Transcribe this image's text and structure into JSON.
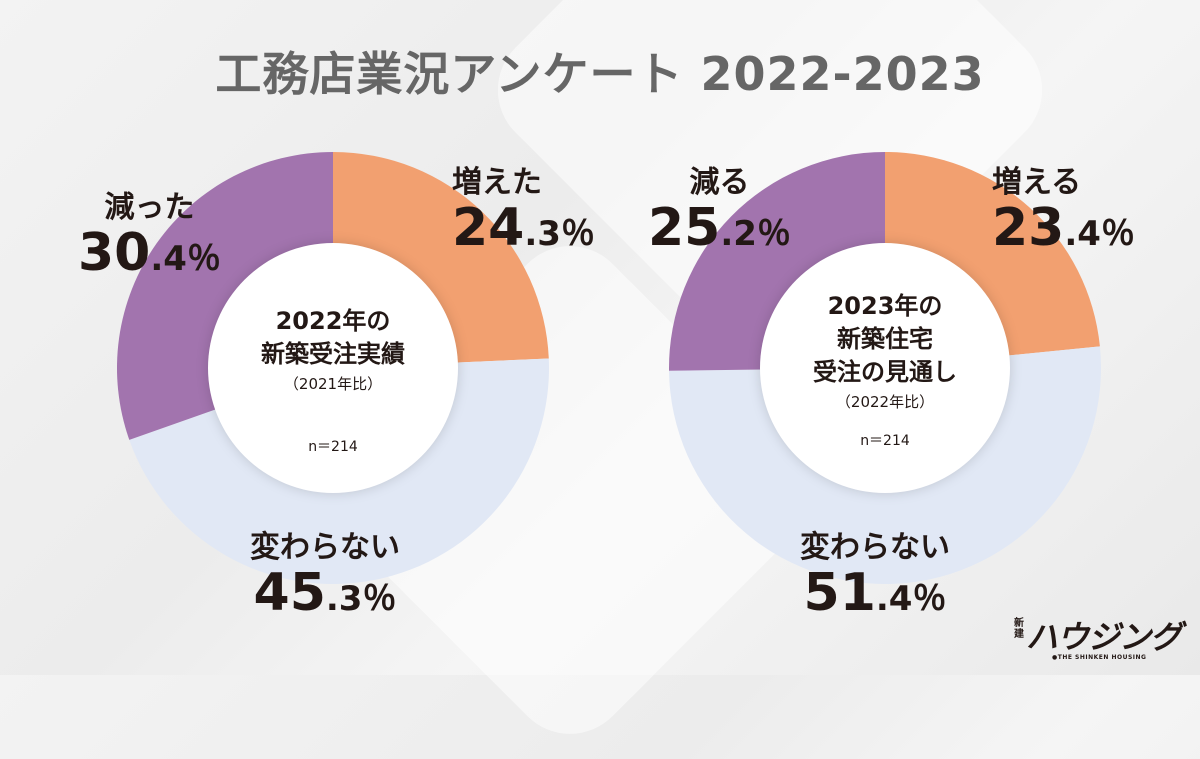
{
  "title": "工務店業況アンケート 2022-2023",
  "colors": {
    "increase": "#F2A070",
    "unchanged": "#E1E8F5",
    "decrease": "#A274AE"
  },
  "chart_data": [
    {
      "type": "pie",
      "center_title_1": "2022年の",
      "center_title_2": "新築受注実績",
      "center_sub": "（2021年比）",
      "n": "n＝214",
      "slices": [
        {
          "label": "増えた",
          "value": 24.3,
          "int": "24",
          "dec": ".3",
          "color_key": "increase"
        },
        {
          "label": "変わらない",
          "value": 45.3,
          "int": "45",
          "dec": ".3",
          "color_key": "unchanged"
        },
        {
          "label": "減った",
          "value": 30.4,
          "int": "30",
          "dec": ".4",
          "color_key": "decrease"
        }
      ]
    },
    {
      "type": "pie",
      "center_title_1": "2023年の",
      "center_title_2": "新築住宅",
      "center_title_3": "受注の見通し",
      "center_sub": "（2022年比）",
      "n": "n＝214",
      "slices": [
        {
          "label": "増える",
          "value": 23.4,
          "int": "23",
          "dec": ".4",
          "color_key": "increase"
        },
        {
          "label": "変わらない",
          "value": 51.4,
          "int": "51",
          "dec": ".4",
          "color_key": "unchanged"
        },
        {
          "label": "減る",
          "value": 25.2,
          "int": "25",
          "dec": ".2",
          "color_key": "decrease"
        }
      ]
    }
  ],
  "percent_sign": "％",
  "logo": {
    "small": "新建",
    "main": "ハウジング",
    "sub": "●THE SHINKEN HOUSING"
  }
}
